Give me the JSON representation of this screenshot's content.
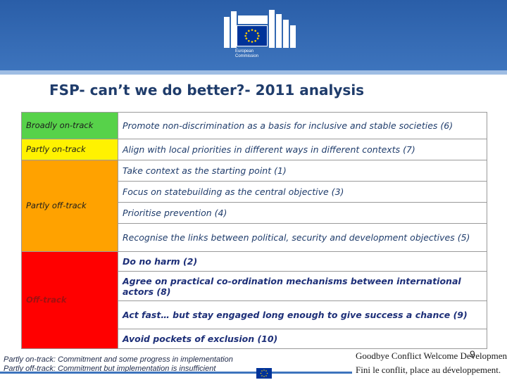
{
  "header": {
    "org_name": "European\nCommission",
    "flag_color": "#003399",
    "banner_color": "#3d74bd"
  },
  "title": "FSP- can’t we do better?- 2011 analysis",
  "statuses": {
    "broadly_on_track": "Broadly on-track",
    "partly_on_track": "Partly on-track",
    "partly_off_track": "Partly off-track",
    "off_track": "Off-track"
  },
  "status_colors": {
    "broadly_on_track": "#57d24a",
    "partly_on_track": "#fff200",
    "partly_off_track": "#ffa200",
    "off_track": "#ff0000"
  },
  "principles": [
    "Promote non-discrimination as a basis for inclusive and stable societies (6)",
    "Align with local priorities in different ways in different contexts (7)",
    "Take context as the starting point (1)",
    "Focus on statebuilding as the central objective (3)",
    "Prioritise prevention (4)",
    "Recognise the links between political, security and development objectives (5)",
    "Do no harm (2)",
    "Agree on practical co-ordination mechanisms between international actors (8)",
    "Act fast… but stay engaged long enough to give success a chance (9)",
    "Avoid pockets of exclusion (10)"
  ],
  "footnotes": {
    "line1": "Partly on-track: Commitment and some progress in implementation",
    "line2": "Partly off-track: Commitment but implementation is insufficient"
  },
  "slogan": {
    "line1": "Goodbye Conflict Welcome Development.",
    "line2": "Fini le conflit, place au développement."
  },
  "page_number": "9"
}
